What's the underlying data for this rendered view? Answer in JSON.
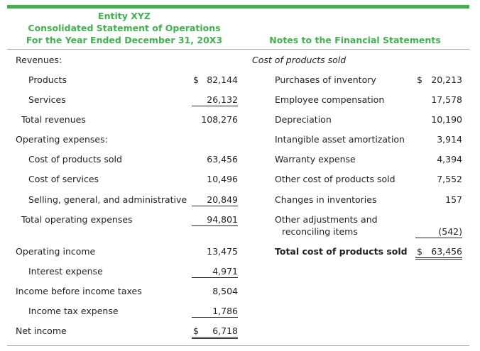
{
  "header": {
    "entity": "Entity XYZ",
    "statement": "Consolidated Statement of Operations",
    "period": "For the Year Ended December 31, 20X3",
    "notes_title": "Notes to the Financial Statements"
  },
  "colors": {
    "accent": "#3bb54a"
  },
  "statement": [
    {
      "label": "Revenues:",
      "indent": 0,
      "value": "",
      "dollar": false,
      "underline": ""
    },
    {
      "label": "Products",
      "indent": 2,
      "value": "82,144",
      "dollar": true,
      "underline": ""
    },
    {
      "label": "Services",
      "indent": 2,
      "value": "26,132",
      "dollar": false,
      "underline": "single"
    },
    {
      "label": "Total revenues",
      "indent": 1,
      "value": "108,276",
      "dollar": false,
      "underline": ""
    },
    {
      "label": "Operating expenses:",
      "indent": 0,
      "value": "",
      "dollar": false,
      "underline": ""
    },
    {
      "label": "Cost of products sold",
      "indent": 2,
      "value": "63,456",
      "dollar": false,
      "underline": ""
    },
    {
      "label": "Cost of services",
      "indent": 2,
      "value": "10,496",
      "dollar": false,
      "underline": ""
    },
    {
      "label": "Selling, general, and administrative",
      "indent": 2,
      "value": "20,849",
      "dollar": false,
      "underline": "single"
    },
    {
      "label": "Total operating expenses",
      "indent": 1,
      "value": "94,801",
      "dollar": false,
      "underline": "single"
    },
    {
      "label": "Operating income",
      "indent": 0,
      "value": "13,475",
      "dollar": false,
      "underline": ""
    },
    {
      "label": "Interest expense",
      "indent": 2,
      "value": "4,971",
      "dollar": false,
      "underline": "single"
    },
    {
      "label": "Income before income taxes",
      "indent": 0,
      "value": "8,504",
      "dollar": false,
      "underline": ""
    },
    {
      "label": "Income tax expense",
      "indent": 2,
      "value": "1,786",
      "dollar": false,
      "underline": "single"
    },
    {
      "label": "Net income",
      "indent": 0,
      "value": "6,718",
      "dollar": true,
      "underline": "double"
    }
  ],
  "notes": {
    "subtitle": "Cost of products sold",
    "items": [
      {
        "label": "Purchases of inventory",
        "value": "20,213",
        "dollar": true,
        "underline": ""
      },
      {
        "label": "Employee compensation",
        "value": "17,578",
        "dollar": false,
        "underline": ""
      },
      {
        "label": "Depreciation",
        "value": "10,190",
        "dollar": false,
        "underline": ""
      },
      {
        "label": "Intangible asset amortization",
        "value": "3,914",
        "dollar": false,
        "underline": ""
      },
      {
        "label": "Warranty expense",
        "value": "4,394",
        "dollar": false,
        "underline": ""
      },
      {
        "label": "Other cost of products sold",
        "value": "7,552",
        "dollar": false,
        "underline": ""
      },
      {
        "label": "Changes in inventories",
        "value": "157",
        "dollar": false,
        "underline": ""
      },
      {
        "label": "Other adjustments and",
        "label2": "reconciling items",
        "value": "(542)",
        "dollar": false,
        "underline": "single"
      }
    ],
    "total": {
      "label": "Total cost of products sold",
      "value": "63,456",
      "dollar": true,
      "underline": "double"
    }
  },
  "currency_symbol": "$"
}
